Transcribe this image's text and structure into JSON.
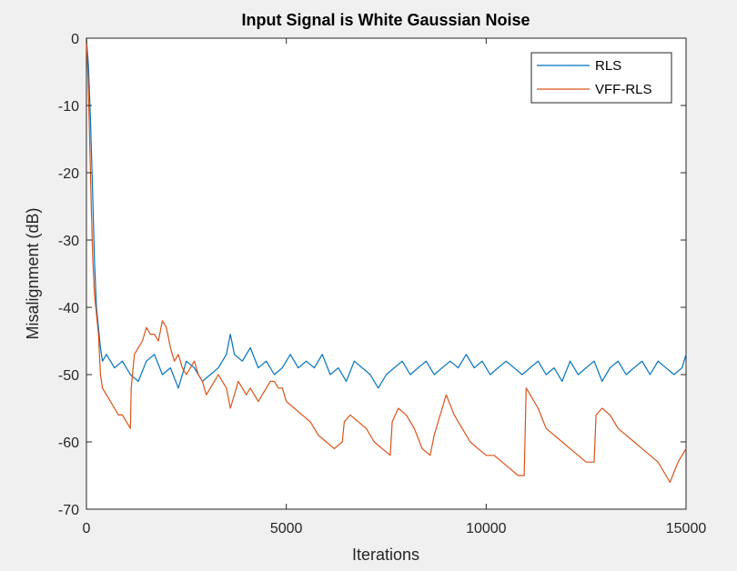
{
  "chart_data": {
    "type": "line",
    "title": "Input Signal is White Gaussian Noise",
    "xlabel": "Iterations",
    "ylabel": "Misalignment (dB)",
    "xlim": [
      0,
      15000
    ],
    "ylim": [
      -70,
      0
    ],
    "xticks": [
      0,
      5000,
      10000,
      15000
    ],
    "yticks": [
      0,
      -10,
      -20,
      -30,
      -40,
      -50,
      -60,
      -70
    ],
    "xtick_labels": [
      "0",
      "5000",
      "10000",
      "15000"
    ],
    "ytick_labels": [
      "0",
      "-10",
      "-20",
      "-30",
      "-40",
      "-50",
      "-60",
      "-70"
    ],
    "grid": false,
    "legend": "top-right",
    "series": [
      {
        "name": "RLS",
        "color": "#0072BD",
        "x": [
          0,
          50,
          100,
          150,
          200,
          250,
          300,
          350,
          400,
          500,
          700,
          900,
          1100,
          1300,
          1500,
          1700,
          1900,
          2100,
          2300,
          2500,
          2700,
          2900,
          3100,
          3300,
          3500,
          3600,
          3700,
          3900,
          4100,
          4300,
          4500,
          4700,
          4900,
          5100,
          5300,
          5500,
          5700,
          5900,
          6100,
          6300,
          6500,
          6700,
          6900,
          7100,
          7300,
          7500,
          7700,
          7900,
          8100,
          8300,
          8500,
          8700,
          8900,
          9100,
          9300,
          9500,
          9700,
          9900,
          10100,
          10300,
          10500,
          10700,
          10900,
          11100,
          11300,
          11500,
          11700,
          11900,
          12100,
          12300,
          12500,
          12700,
          12900,
          13100,
          13300,
          13500,
          13700,
          13900,
          14100,
          14300,
          14500,
          14700,
          14900,
          15000
        ],
        "y": [
          0,
          -4,
          -12,
          -22,
          -33,
          -40,
          -43,
          -46,
          -48,
          -47,
          -49,
          -48,
          -50,
          -51,
          -48,
          -47,
          -50,
          -49,
          -52,
          -48,
          -49,
          -51,
          -50,
          -49,
          -47,
          -44,
          -47,
          -48,
          -46,
          -49,
          -48,
          -50,
          -49,
          -47,
          -49,
          -48,
          -49,
          -47,
          -50,
          -49,
          -51,
          -48,
          -49,
          -50,
          -52,
          -50,
          -49,
          -48,
          -50,
          -49,
          -48,
          -50,
          -49,
          -48,
          -49,
          -47,
          -49,
          -48,
          -50,
          -49,
          -48,
          -49,
          -50,
          -49,
          -48,
          -50,
          -49,
          -51,
          -48,
          -50,
          -49,
          -48,
          -51,
          -49,
          -48,
          -50,
          -49,
          -48,
          -50,
          -48,
          -49,
          -50,
          -49,
          -47
        ]
      },
      {
        "name": "VFF-RLS",
        "color": "#D95319",
        "x": [
          0,
          40,
          80,
          120,
          160,
          200,
          250,
          300,
          350,
          400,
          500,
          600,
          700,
          800,
          900,
          1000,
          1100,
          1120,
          1200,
          1300,
          1400,
          1500,
          1600,
          1700,
          1800,
          1900,
          2000,
          2100,
          2200,
          2300,
          2400,
          2500,
          2600,
          2700,
          2800,
          2900,
          3000,
          3100,
          3200,
          3300,
          3400,
          3500,
          3600,
          3700,
          3800,
          3900,
          4000,
          4100,
          4200,
          4300,
          4400,
          4500,
          4600,
          4700,
          4800,
          4900,
          5000,
          5200,
          5400,
          5600,
          5800,
          6000,
          6200,
          6400,
          6450,
          6600,
          6800,
          7000,
          7200,
          7400,
          7600,
          7650,
          7800,
          8000,
          8200,
          8400,
          8600,
          8700,
          8900,
          9000,
          9200,
          9400,
          9600,
          9800,
          10000,
          10200,
          10400,
          10600,
          10800,
          10950,
          11000,
          11100,
          11300,
          11500,
          11700,
          11900,
          12100,
          12300,
          12500,
          12700,
          12750,
          12900,
          13100,
          13300,
          13500,
          13700,
          13900,
          14100,
          14300,
          14500,
          14600,
          14800,
          15000
        ],
        "y": [
          0,
          -6,
          -15,
          -25,
          -33,
          -38,
          -41,
          -44,
          -50,
          -52,
          -53,
          -54,
          -55,
          -56,
          -56,
          -57,
          -58,
          -52,
          -47,
          -46,
          -45,
          -43,
          -44,
          -44,
          -45,
          -42,
          -43,
          -46,
          -48,
          -47,
          -49,
          -50,
          -49,
          -48,
          -50,
          -51,
          -53,
          -52,
          -51,
          -50,
          -51,
          -52,
          -55,
          -53,
          -51,
          -52,
          -53,
          -52,
          -53,
          -54,
          -53,
          -52,
          -51,
          -51,
          -52,
          -52,
          -54,
          -55,
          -56,
          -57,
          -59,
          -60,
          -61,
          -60,
          -57,
          -56,
          -57,
          -58,
          -60,
          -61,
          -62,
          -57,
          -55,
          -56,
          -58,
          -61,
          -62,
          -59,
          -55,
          -53,
          -56,
          -58,
          -60,
          -61,
          -62,
          -62,
          -63,
          -64,
          -65,
          -65,
          -52,
          -53,
          -55,
          -58,
          -59,
          -60,
          -61,
          -62,
          -63,
          -63,
          -56,
          -55,
          -56,
          -58,
          -59,
          -60,
          -61,
          -62,
          -63,
          -65,
          -66,
          -63,
          -61
        ]
      }
    ]
  }
}
